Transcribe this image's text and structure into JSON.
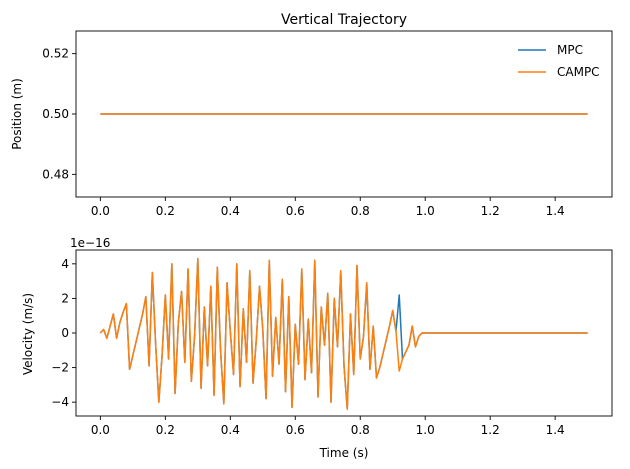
{
  "chart_data": [
    {
      "type": "line",
      "title": "Vertical Trajectory",
      "xlabel": "",
      "ylabel": "Position (m)",
      "xlim": [
        -0.075,
        1.575
      ],
      "ylim": [
        0.4725,
        0.5275
      ],
      "xticks": [
        0.0,
        0.2,
        0.4,
        0.6,
        0.8,
        1.0,
        1.2,
        1.4
      ],
      "xtick_labels": [
        "0.0",
        "0.2",
        "0.4",
        "0.6",
        "0.8",
        "1.0",
        "1.2",
        "1.4"
      ],
      "yticks": [
        0.48,
        0.5,
        0.52
      ],
      "ytick_labels": [
        "0.48",
        "0.50",
        "0.52"
      ],
      "legend_position": "top-right",
      "grid": false,
      "series": [
        {
          "name": "MPC",
          "color": "#1f77b4",
          "x": [
            0.0,
            1.5
          ],
          "y": [
            0.5,
            0.5
          ]
        },
        {
          "name": "CAMPC",
          "color": "#ff7f0e",
          "x": [
            0.0,
            1.5
          ],
          "y": [
            0.5,
            0.5
          ]
        }
      ]
    },
    {
      "type": "line",
      "title": "",
      "xlabel": "Time (s)",
      "ylabel": "Velocity (m/s)",
      "y_offset_label": "1e−16",
      "xlim": [
        -0.075,
        1.575
      ],
      "ylim": [
        -4.8,
        4.8
      ],
      "xticks": [
        0.0,
        0.2,
        0.4,
        0.6,
        0.8,
        1.0,
        1.2,
        1.4
      ],
      "xtick_labels": [
        "0.0",
        "0.2",
        "0.4",
        "0.6",
        "0.8",
        "1.0",
        "1.2",
        "1.4"
      ],
      "yticks": [
        -4,
        -2,
        0,
        2,
        4
      ],
      "ytick_labels": [
        "−4",
        "−2",
        "0",
        "2",
        "4"
      ],
      "grid": false,
      "series": [
        {
          "name": "MPC",
          "color": "#1f77b4",
          "x": [
            0.0,
            0.01,
            0.02,
            0.03,
            0.04,
            0.05,
            0.06,
            0.07,
            0.08,
            0.09,
            0.1,
            0.11,
            0.12,
            0.13,
            0.14,
            0.15,
            0.16,
            0.17,
            0.18,
            0.19,
            0.2,
            0.21,
            0.22,
            0.23,
            0.24,
            0.25,
            0.26,
            0.27,
            0.28,
            0.29,
            0.3,
            0.31,
            0.32,
            0.33,
            0.34,
            0.35,
            0.36,
            0.37,
            0.38,
            0.39,
            0.4,
            0.41,
            0.42,
            0.43,
            0.44,
            0.45,
            0.46,
            0.47,
            0.48,
            0.49,
            0.5,
            0.51,
            0.52,
            0.53,
            0.54,
            0.55,
            0.56,
            0.57,
            0.58,
            0.59,
            0.6,
            0.61,
            0.62,
            0.63,
            0.64,
            0.65,
            0.66,
            0.67,
            0.68,
            0.69,
            0.7,
            0.71,
            0.72,
            0.73,
            0.74,
            0.75,
            0.76,
            0.77,
            0.78,
            0.79,
            0.8,
            0.81,
            0.82,
            0.83,
            0.84,
            0.85,
            0.86,
            0.87,
            0.88,
            0.89,
            0.9,
            0.91,
            0.92,
            0.93,
            0.94,
            0.95,
            0.96,
            0.97,
            0.98,
            0.99,
            1.0,
            1.01,
            1.5
          ],
          "y": [
            0.0,
            0.2,
            -0.3,
            0.4,
            1.1,
            -0.3,
            0.6,
            1.2,
            1.7,
            -2.1,
            -1.3,
            -0.5,
            0.3,
            1.1,
            2.1,
            -1.9,
            3.5,
            -0.6,
            -4.0,
            -1.3,
            2.2,
            -1.5,
            4.0,
            -3.5,
            0.6,
            2.4,
            -1.7,
            3.7,
            -2.8,
            -0.2,
            4.3,
            -3.2,
            1.5,
            -1.9,
            2.7,
            -3.6,
            3.8,
            -1.0,
            -4.1,
            2.9,
            0.1,
            -2.4,
            4.0,
            -3.1,
            1.4,
            -1.7,
            3.6,
            -2.9,
            -0.4,
            2.7,
            0.2,
            -3.8,
            4.2,
            -2.5,
            0.9,
            -1.8,
            3.1,
            -3.4,
            2.1,
            -4.3,
            0.5,
            -1.8,
            3.7,
            -2.7,
            0.8,
            -2.3,
            4.2,
            -3.7,
            1.5,
            -0.7,
            2.3,
            -4.0,
            2.0,
            -0.8,
            3.6,
            -1.9,
            -4.4,
            1.1,
            -2.4,
            3.9,
            -1.5,
            -0.2,
            2.9,
            -2.1,
            0.4,
            -2.6,
            -2.0,
            -1.2,
            -0.4,
            0.4,
            1.3,
            0.1,
            2.2,
            -1.5,
            -1.1,
            -0.7,
            0.4,
            -0.8,
            -0.2,
            0.0,
            0.0,
            0.0,
            0.0
          ]
        },
        {
          "name": "CAMPC",
          "color": "#ff7f0e",
          "x": [
            0.0,
            0.01,
            0.02,
            0.03,
            0.04,
            0.05,
            0.06,
            0.07,
            0.08,
            0.09,
            0.1,
            0.11,
            0.12,
            0.13,
            0.14,
            0.15,
            0.16,
            0.17,
            0.18,
            0.19,
            0.2,
            0.21,
            0.22,
            0.23,
            0.24,
            0.25,
            0.26,
            0.27,
            0.28,
            0.29,
            0.3,
            0.31,
            0.32,
            0.33,
            0.34,
            0.35,
            0.36,
            0.37,
            0.38,
            0.39,
            0.4,
            0.41,
            0.42,
            0.43,
            0.44,
            0.45,
            0.46,
            0.47,
            0.48,
            0.49,
            0.5,
            0.51,
            0.52,
            0.53,
            0.54,
            0.55,
            0.56,
            0.57,
            0.58,
            0.59,
            0.6,
            0.61,
            0.62,
            0.63,
            0.64,
            0.65,
            0.66,
            0.67,
            0.68,
            0.69,
            0.7,
            0.71,
            0.72,
            0.73,
            0.74,
            0.75,
            0.76,
            0.77,
            0.78,
            0.79,
            0.8,
            0.81,
            0.82,
            0.83,
            0.84,
            0.85,
            0.86,
            0.87,
            0.88,
            0.89,
            0.9,
            0.91,
            0.92,
            0.93,
            0.94,
            0.95,
            0.96,
            0.97,
            0.98,
            0.99,
            1.0,
            1.01,
            1.5
          ],
          "y": [
            0.0,
            0.2,
            -0.3,
            0.4,
            1.1,
            -0.3,
            0.6,
            1.2,
            1.7,
            -2.1,
            -1.3,
            -0.5,
            0.3,
            1.1,
            2.1,
            -1.9,
            3.5,
            -0.6,
            -4.0,
            -1.3,
            2.2,
            -1.5,
            4.0,
            -3.5,
            0.6,
            2.4,
            -1.7,
            3.7,
            -2.8,
            -0.2,
            4.3,
            -3.2,
            1.5,
            -1.9,
            2.7,
            -3.6,
            3.8,
            -1.0,
            -4.1,
            2.9,
            0.1,
            -2.4,
            4.0,
            -3.1,
            1.4,
            -1.7,
            3.6,
            -2.9,
            -0.4,
            2.7,
            0.2,
            -3.8,
            4.2,
            -2.5,
            0.9,
            -1.8,
            3.1,
            -3.4,
            2.1,
            -4.3,
            0.5,
            -1.8,
            3.7,
            -2.7,
            0.8,
            -2.3,
            4.2,
            -3.7,
            1.5,
            -0.7,
            2.3,
            -4.0,
            2.0,
            -0.8,
            3.6,
            -1.9,
            -4.4,
            1.1,
            -2.4,
            3.9,
            -1.5,
            -0.2,
            2.9,
            -2.1,
            0.4,
            -2.6,
            -2.0,
            -1.2,
            -0.4,
            0.4,
            1.3,
            0.1,
            -2.2,
            -1.5,
            -1.1,
            -0.7,
            0.4,
            -0.8,
            -0.2,
            0.0,
            0.0,
            0.0,
            0.0
          ]
        }
      ]
    }
  ]
}
